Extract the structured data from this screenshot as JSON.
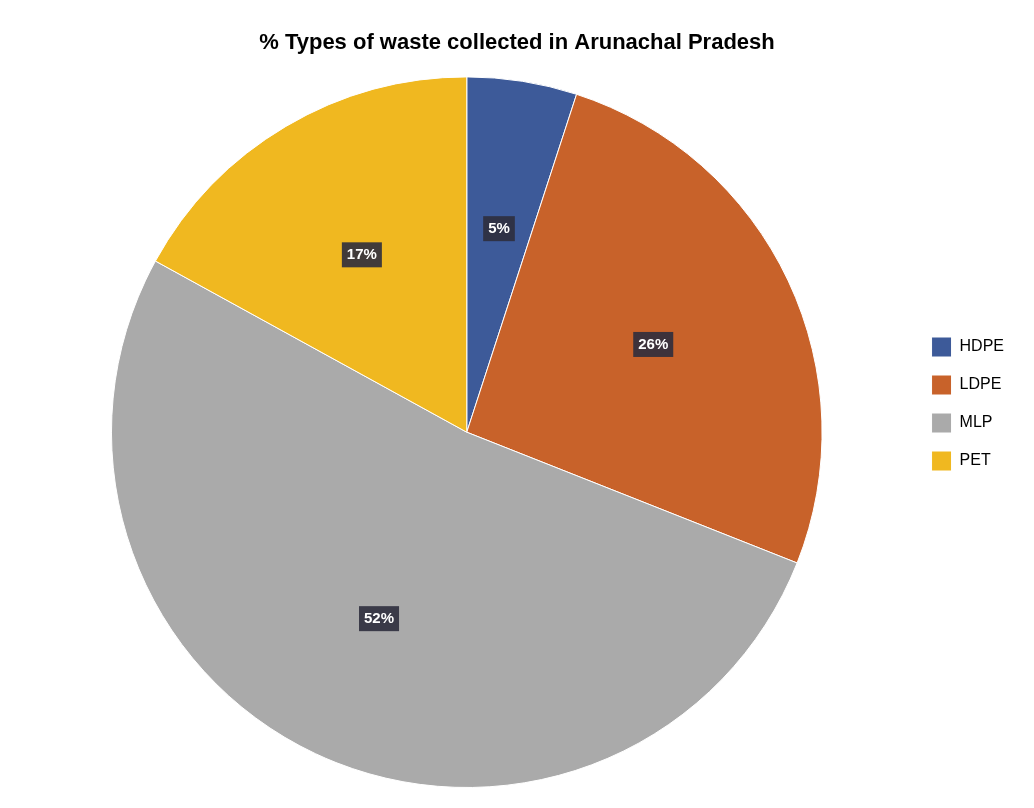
{
  "chart_data": {
    "type": "pie",
    "title": "% Types of waste collected in Arunachal Pradesh",
    "categories": [
      "HDPE",
      "LDPE",
      "MLP",
      "PET"
    ],
    "values": [
      5,
      26,
      52,
      17
    ],
    "value_labels": [
      "5%",
      "26%",
      "52%",
      "17%"
    ],
    "colors": [
      "#3d5a99",
      "#c8622a",
      "#aaaaaa",
      "#f0b820"
    ],
    "data_labels": true,
    "legend": "right"
  }
}
